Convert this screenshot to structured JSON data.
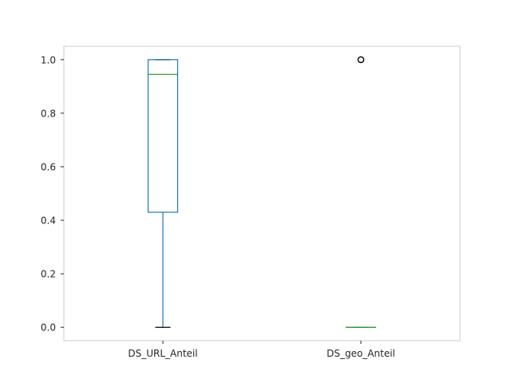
{
  "chart_data": {
    "type": "boxplot",
    "title": "",
    "xlabel": "",
    "ylabel": "",
    "ylim": [
      -0.05,
      1.05
    ],
    "yticks": [
      0.0,
      0.2,
      0.4,
      0.6,
      0.8,
      1.0
    ],
    "ytick_labels": [
      "0.0",
      "0.2",
      "0.4",
      "0.6",
      "0.8",
      "1.0"
    ],
    "grid": false,
    "categories": [
      "DS_URL_Anteil",
      "DS_geo_Anteil"
    ],
    "boxes": [
      {
        "name": "DS_URL_Anteil",
        "whisker_low": 0.0,
        "q1": 0.43,
        "median": 0.945,
        "q3": 1.0,
        "whisker_high": 1.0,
        "outliers": []
      },
      {
        "name": "DS_geo_Anteil",
        "whisker_low": 0.0,
        "q1": 0.0,
        "median": 0.0,
        "q3": 0.0,
        "whisker_high": 0.0,
        "outliers": [
          1.0
        ]
      }
    ],
    "colors": {
      "box": "#1f77b4",
      "median": "#2ca02c",
      "whisker_cap": "#000000",
      "outlier": "#000000",
      "frame": "#cccccc"
    }
  }
}
